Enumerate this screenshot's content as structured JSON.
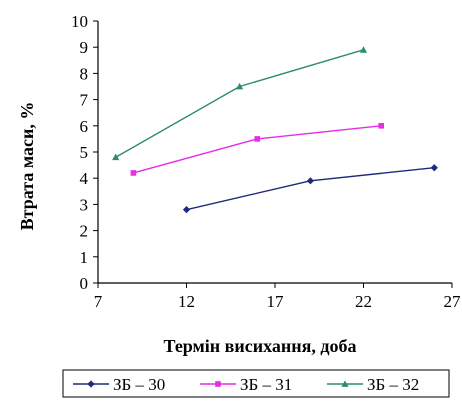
{
  "chart_data": {
    "type": "line",
    "title": "",
    "xlabel": "Термін висихання, доба",
    "ylabel": "Втрата маси, %",
    "xlim": [
      7,
      27
    ],
    "ylim": [
      0,
      10
    ],
    "x_ticks": [
      7,
      12,
      17,
      22,
      27
    ],
    "y_ticks": [
      0,
      1,
      2,
      3,
      4,
      5,
      6,
      7,
      8,
      9,
      10
    ],
    "grid": false,
    "legend_position": "bottom",
    "series": [
      {
        "name": "ЗБ – 30",
        "color": "#1f2a7a",
        "marker": "diamond",
        "x": [
          12,
          19,
          26
        ],
        "y": [
          2.8,
          3.9,
          4.4
        ]
      },
      {
        "name": "ЗБ – 31",
        "color": "#e62ee6",
        "marker": "square",
        "x": [
          9,
          16,
          23
        ],
        "y": [
          4.2,
          5.5,
          6.0
        ]
      },
      {
        "name": "ЗБ – 32",
        "color": "#2e8b6e",
        "marker": "triangle",
        "x": [
          8,
          15,
          22
        ],
        "y": [
          4.8,
          7.5,
          8.9
        ]
      }
    ]
  }
}
